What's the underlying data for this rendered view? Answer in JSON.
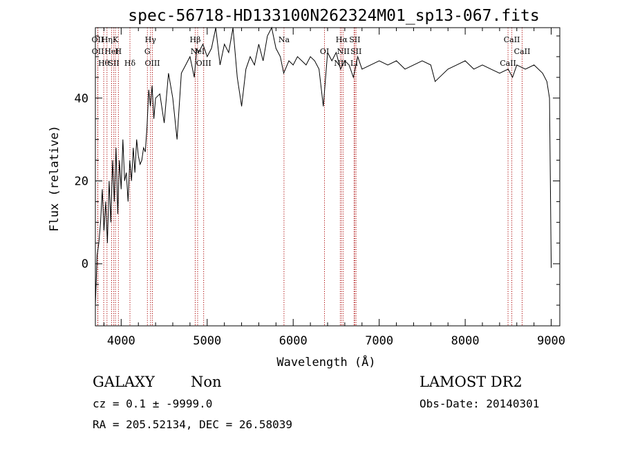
{
  "title": "spec-56718-HD133100N262324M01_sp13-067.fits",
  "chart_data": {
    "type": "line",
    "xlabel": "Wavelength (Å)",
    "ylabel": "Flux (relative)",
    "xlim": [
      3700,
      9100
    ],
    "ylim": [
      -15,
      57
    ],
    "x_ticks": [
      4000,
      5000,
      6000,
      7000,
      8000,
      9000
    ],
    "y_ticks": [
      0,
      20,
      40
    ],
    "x_minor_step": 200,
    "y_minor_step": 5,
    "series_color": "#000000",
    "marker_color": "#aa0000",
    "spectrum": {
      "x": [
        3700,
        3720,
        3740,
        3760,
        3780,
        3800,
        3820,
        3840,
        3860,
        3880,
        3900,
        3920,
        3940,
        3960,
        3980,
        4000,
        4020,
        4040,
        4060,
        4080,
        4100,
        4120,
        4140,
        4160,
        4180,
        4200,
        4220,
        4240,
        4260,
        4280,
        4300,
        4320,
        4340,
        4360,
        4380,
        4400,
        4450,
        4500,
        4550,
        4600,
        4650,
        4700,
        4750,
        4800,
        4850,
        4880,
        4900,
        4950,
        5000,
        5050,
        5100,
        5150,
        5200,
        5250,
        5300,
        5350,
        5400,
        5450,
        5500,
        5550,
        5600,
        5650,
        5700,
        5750,
        5800,
        5850,
        5890,
        5950,
        6000,
        6050,
        6100,
        6150,
        6200,
        6250,
        6300,
        6350,
        6400,
        6450,
        6500,
        6550,
        6600,
        6650,
        6700,
        6750,
        6800,
        6900,
        7000,
        7100,
        7200,
        7300,
        7400,
        7500,
        7600,
        7650,
        7700,
        7800,
        7900,
        8000,
        8100,
        8200,
        8300,
        8400,
        8500,
        8550,
        8600,
        8700,
        8800,
        8900,
        8950,
        8980,
        9000
      ],
      "y": [
        -10,
        2,
        5,
        10,
        18,
        8,
        15,
        5,
        20,
        10,
        25,
        15,
        28,
        12,
        25,
        18,
        30,
        20,
        22,
        15,
        25,
        20,
        28,
        22,
        30,
        26,
        24,
        25,
        28,
        27,
        33,
        42,
        38,
        43,
        35,
        40,
        41,
        34,
        46,
        40,
        30,
        46,
        48,
        50,
        45,
        52,
        51,
        53,
        50,
        52,
        58,
        48,
        53,
        51,
        58,
        45,
        38,
        47,
        50,
        48,
        53,
        49,
        55,
        57,
        52,
        50,
        46,
        49,
        48,
        50,
        49,
        48,
        50,
        49,
        47,
        38,
        51,
        49,
        51,
        47,
        49,
        48,
        45,
        50,
        47,
        48,
        49,
        48,
        49,
        47,
        48,
        49,
        48,
        44,
        45,
        47,
        48,
        49,
        47,
        48,
        47,
        46,
        47,
        45,
        48,
        47,
        48,
        46,
        44,
        40,
        -1
      ]
    },
    "lines": [
      {
        "label": "OII",
        "x": 3727
      },
      {
        "label": "OII",
        "x": 3729
      },
      {
        "label": "Hθ",
        "x": 3797
      },
      {
        "label": "Hη",
        "x": 3835
      },
      {
        "label": "HeI",
        "x": 3889
      },
      {
        "label": "SII",
        "x": 3914
      },
      {
        "label": "K",
        "x": 3934
      },
      {
        "label": "H",
        "x": 3968
      },
      {
        "label": "Hδ",
        "x": 4102
      },
      {
        "label": "Hγ",
        "x": 4341
      },
      {
        "label": "G",
        "x": 4305
      },
      {
        "label": "OIII",
        "x": 4363
      },
      {
        "label": "Hβ",
        "x": 4861
      },
      {
        "label": "NeI",
        "x": 4889
      },
      {
        "label": "OIII",
        "x": 4959
      },
      {
        "label": "Na",
        "x": 5893
      },
      {
        "label": "OI",
        "x": 6364
      },
      {
        "label": "NII",
        "x": 6548
      },
      {
        "label": "Hα",
        "x": 6563
      },
      {
        "label": "NII",
        "x": 6583
      },
      {
        "label": "Li",
        "x": 6708
      },
      {
        "label": "SII",
        "x": 6716
      },
      {
        "label": "SII",
        "x": 6731
      },
      {
        "label": "CaII",
        "x": 8498
      },
      {
        "label": "CaII",
        "x": 8542
      },
      {
        "label": "CaII",
        "x": 8662
      }
    ]
  },
  "info": {
    "class": "GALAXY",
    "subclass": "Non",
    "survey": "LAMOST DR2",
    "cz": "cz = 0.1 ± -9999.0",
    "obs_date": "Obs-Date: 20140301",
    "radec": "RA = 205.52134, DEC =  26.58039"
  }
}
